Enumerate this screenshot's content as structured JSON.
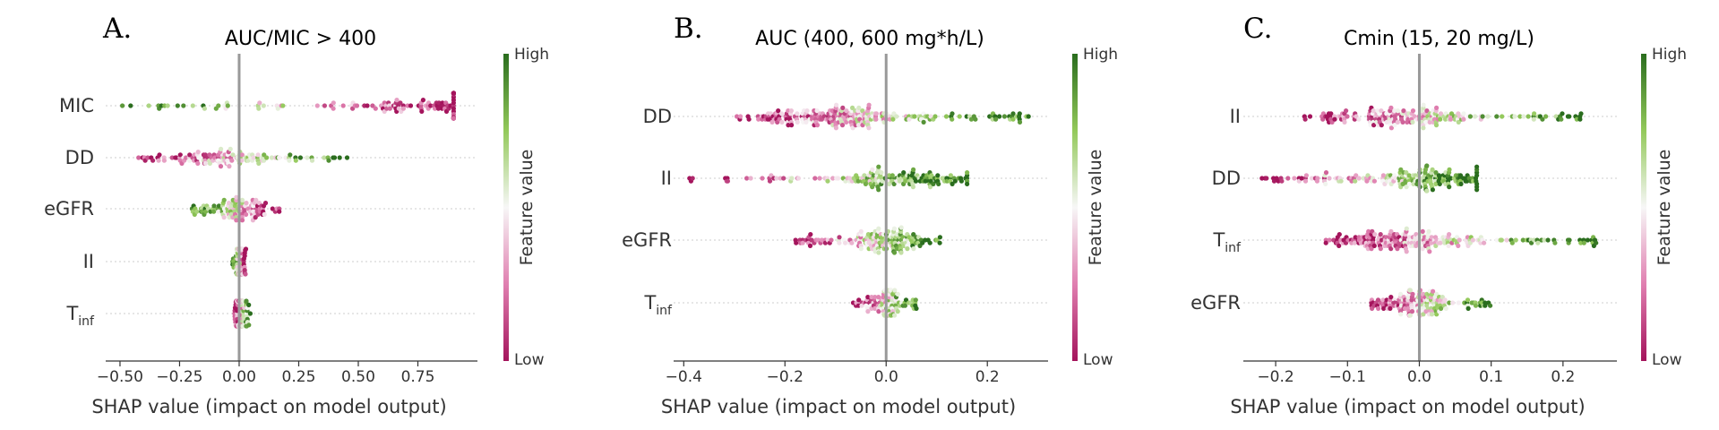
{
  "chart_data": [
    {
      "type": "scatter",
      "panel_label": "A.",
      "title": "AUC/MIC > 400",
      "xlabel": "SHAP value (impact on model output)",
      "xlim": [
        -0.56,
        1.0
      ],
      "xticks": [
        -0.5,
        -0.25,
        0.0,
        0.25,
        0.5,
        0.75
      ],
      "xtick_labels": [
        "−0.50",
        "−0.25",
        "0.00",
        "0.25",
        "0.50",
        "0.75"
      ],
      "colorbar": {
        "high": "High",
        "low": "Low",
        "label": "Feature value"
      },
      "features": [
        {
          "name": "MIC",
          "sub": "",
          "min": -0.5,
          "max": 0.9,
          "low_side": "right",
          "density_center": 0.85,
          "spread": 0.3
        },
        {
          "name": "DD",
          "sub": "",
          "min": -0.44,
          "max": 0.48,
          "low_side": "left",
          "density_center": -0.08,
          "spread": 0.3
        },
        {
          "name": "eGFR",
          "sub": "",
          "min": -0.2,
          "max": 0.17,
          "low_side": "right",
          "density_center": 0.0,
          "spread": 0.2
        },
        {
          "name": "II",
          "sub": "",
          "min": -0.03,
          "max": 0.03,
          "low_side": "right",
          "density_center": 0.0,
          "spread": 0.1
        },
        {
          "name": "T",
          "sub": "inf",
          "min": -0.02,
          "max": 0.05,
          "low_side": "left",
          "density_center": 0.0,
          "spread": 0.1
        }
      ]
    },
    {
      "type": "scatter",
      "panel_label": "B.",
      "title": "AUC (400, 600 mg*h/L)",
      "xlabel": "SHAP value (impact on model output)",
      "xlim": [
        -0.42,
        0.32
      ],
      "xticks": [
        -0.4,
        -0.2,
        0.0,
        0.2
      ],
      "xtick_labels": [
        "−0.4",
        "−0.2",
        "0.0",
        "0.2"
      ],
      "colorbar": {
        "high": "High",
        "low": "Low",
        "label": "Feature value"
      },
      "features": [
        {
          "name": "DD",
          "sub": "",
          "min": -0.31,
          "max": 0.29,
          "low_side": "left",
          "density_center": -0.1,
          "spread": 0.9
        },
        {
          "name": "II",
          "sub": "",
          "min": -0.39,
          "max": 0.16,
          "low_side": "left",
          "density_center": 0.04,
          "spread": 0.5
        },
        {
          "name": "eGFR",
          "sub": "",
          "min": -0.18,
          "max": 0.11,
          "low_side": "left",
          "density_center": 0.0,
          "spread": 0.5
        },
        {
          "name": "T",
          "sub": "inf",
          "min": -0.07,
          "max": 0.06,
          "low_side": "left",
          "density_center": 0.0,
          "spread": 0.2
        }
      ]
    },
    {
      "type": "scatter",
      "panel_label": "C.",
      "title": "Cmin (15, 20 mg/L)",
      "xlabel": "SHAP value (impact on model output)",
      "xlim": [
        -0.245,
        0.275
      ],
      "xticks": [
        -0.2,
        -0.1,
        0.0,
        0.1,
        0.2
      ],
      "xtick_labels": [
        "−0.2",
        "−0.1",
        "0.0",
        "0.1",
        "0.2"
      ],
      "colorbar": {
        "high": "High",
        "low": "Low",
        "label": "Feature value"
      },
      "features": [
        {
          "name": "II",
          "sub": "",
          "min": -0.17,
          "max": 0.23,
          "low_side": "left",
          "density_center": -0.02,
          "spread": 0.7
        },
        {
          "name": "DD",
          "sub": "",
          "min": -0.22,
          "max": 0.08,
          "low_side": "left",
          "density_center": 0.02,
          "spread": 0.6
        },
        {
          "name": "T",
          "sub": "inf",
          "min": -0.13,
          "max": 0.25,
          "low_side": "left",
          "density_center": -0.03,
          "spread": 0.8
        },
        {
          "name": "eGFR",
          "sub": "",
          "min": -0.07,
          "max": 0.1,
          "low_side": "left",
          "density_center": 0.0,
          "spread": 0.5
        }
      ]
    }
  ],
  "colors": {
    "high": "#2a6d1e",
    "mid": "#f7f7f7",
    "low": "#a4145c",
    "zero_line": "#999999",
    "gridline": "#cccccc"
  }
}
